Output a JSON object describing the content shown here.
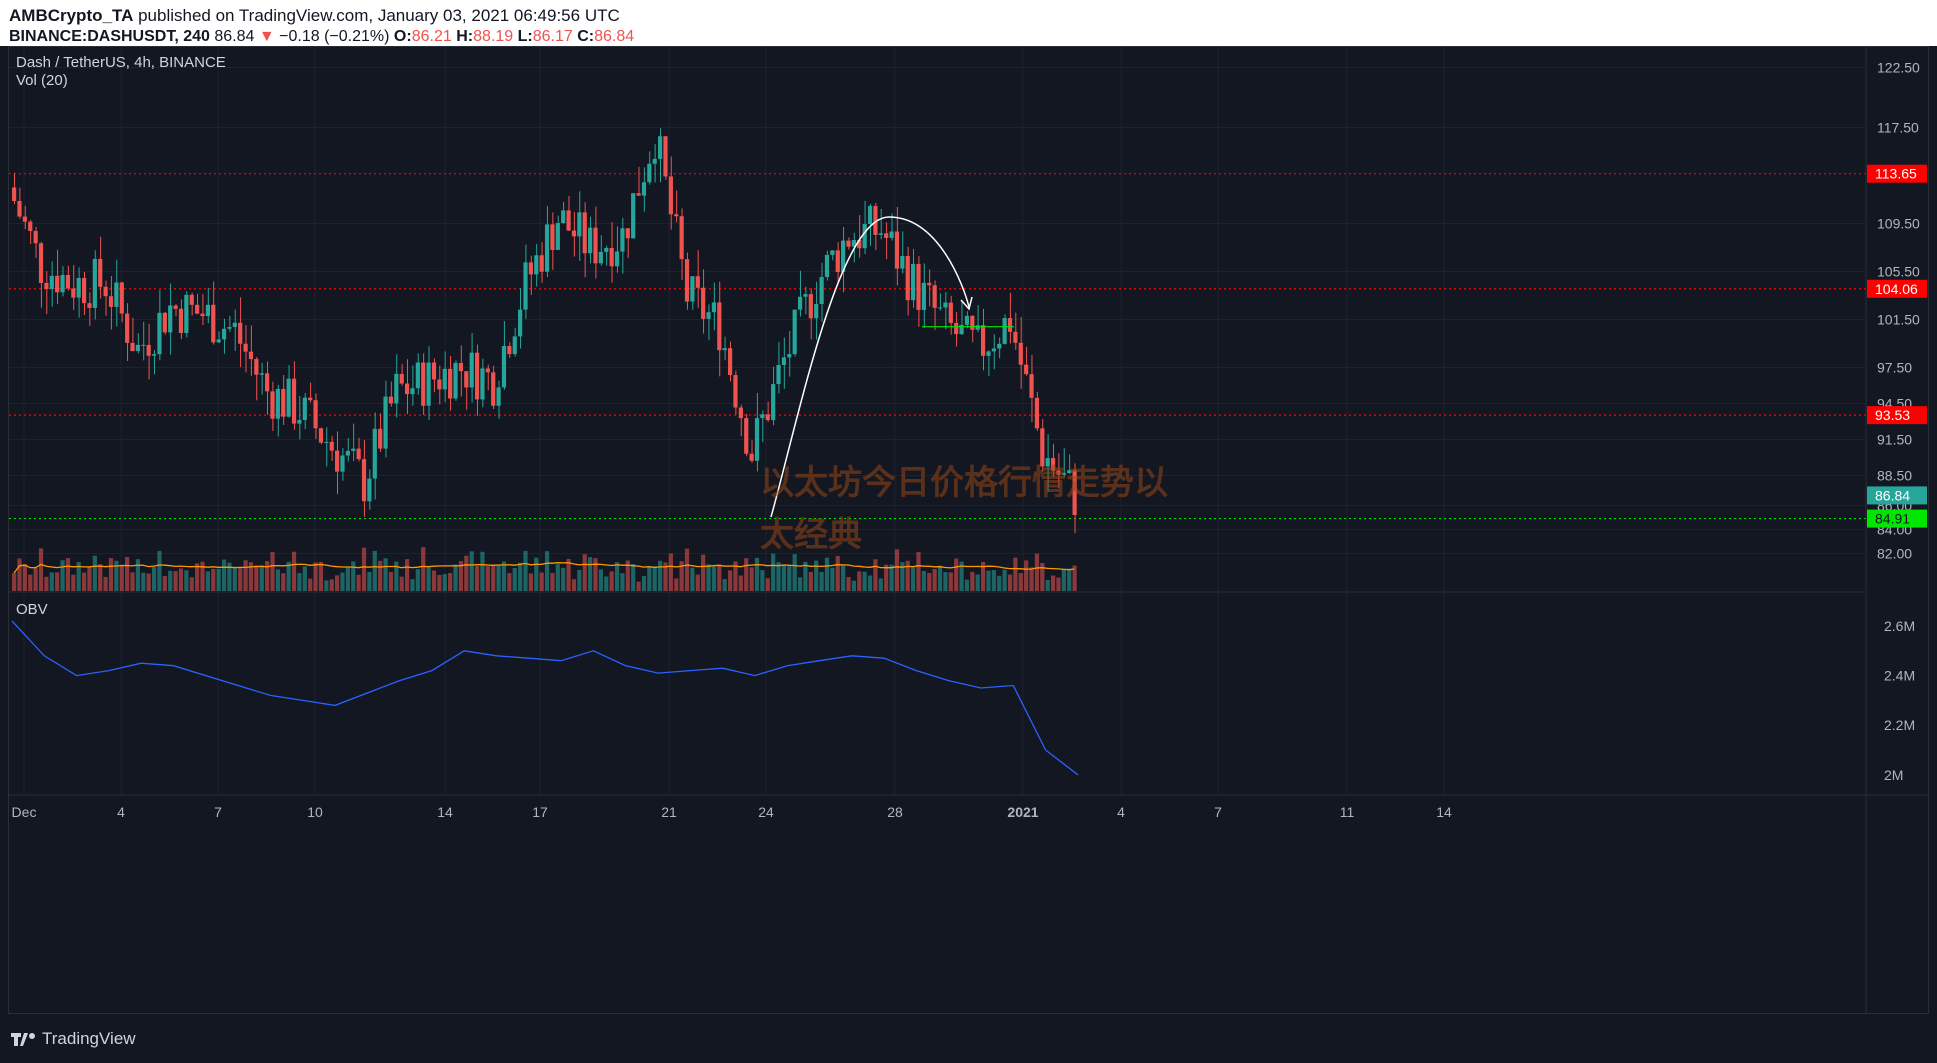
{
  "header": {
    "author": "AMBCrypto_TA",
    "published": "published on TradingView.com, January 03, 2021 06:49:56 UTC",
    "symbol": "BINANCE:DASHUSDT, 240",
    "last": "86.84",
    "change": "−0.18 (−0.21%)",
    "o_label": "O:",
    "o": "86.21",
    "h_label": "H:",
    "h": "88.19",
    "l_label": "L:",
    "l": "86.17",
    "c_label": "C:",
    "c": "86.84"
  },
  "pane": {
    "title": "Dash / TetherUS, 4h, BINANCE",
    "vol_label": "Vol (20)",
    "obv_label": "OBV"
  },
  "watermark": "以太坊今日价格行情走势以太经典",
  "footer": {
    "brand": "TradingView"
  },
  "colors": {
    "up": "#26a69a",
    "down": "#ef5350",
    "resistance": "#ff0000",
    "support": "#00e600",
    "obv": "#2962ff",
    "vol_ma": "#ff9800"
  },
  "chart_data": [
    {
      "type": "candlestick",
      "title": "Dash / TetherUS, 4h, BINANCE",
      "y_ticks": [
        122.5,
        117.5,
        109.5,
        105.5,
        101.5,
        97.5,
        94.5,
        91.5,
        88.5,
        86.0,
        84.0,
        82.0
      ],
      "ylim": [
        82.0,
        124.0
      ],
      "x_ticks": [
        "Dec",
        "4",
        "7",
        "10",
        "14",
        "17",
        "21",
        "24",
        "28",
        "2021",
        "4",
        "7",
        "11",
        "14"
      ],
      "horizontal_levels": [
        {
          "value": 113.65,
          "label": "113.65",
          "color": "#ff0000",
          "style": "dotted"
        },
        {
          "value": 104.06,
          "label": "104.06",
          "color": "#ff0000",
          "style": "dotted"
        },
        {
          "value": 93.53,
          "label": "93.53",
          "color": "#ff0000",
          "style": "dotted"
        },
        {
          "value": 84.91,
          "label": "84.91",
          "color": "#00e600",
          "style": "dotted"
        }
      ],
      "last_price": {
        "value": 86.84,
        "label": "86.84"
      },
      "close_path": [
        {
          "x": "Dec 1",
          "y": 112.5
        },
        {
          "x": "Dec 2",
          "y": 106.0
        },
        {
          "x": "Dec 3",
          "y": 104.5
        },
        {
          "x": "Dec 4",
          "y": 104.5
        },
        {
          "x": "Dec 5",
          "y": 99.0
        },
        {
          "x": "Dec 6",
          "y": 102.5
        },
        {
          "x": "Dec 7",
          "y": 102.0
        },
        {
          "x": "Dec 8",
          "y": 100.5
        },
        {
          "x": "Dec 9",
          "y": 95.5
        },
        {
          "x": "Dec 10",
          "y": 94.0
        },
        {
          "x": "Dec 11",
          "y": 91.0
        },
        {
          "x": "Dec 12",
          "y": 88.0
        },
        {
          "x": "Dec 13",
          "y": 95.5
        },
        {
          "x": "Dec 14",
          "y": 96.5
        },
        {
          "x": "Dec 15",
          "y": 97.5
        },
        {
          "x": "Dec 16",
          "y": 96.5
        },
        {
          "x": "Dec 17",
          "y": 104.5
        },
        {
          "x": "Dec 18",
          "y": 110.0
        },
        {
          "x": "Dec 19",
          "y": 107.5
        },
        {
          "x": "Dec 20",
          "y": 108.5
        },
        {
          "x": "Dec 21",
          "y": 117.0
        },
        {
          "x": "Dec 22",
          "y": 103.5
        },
        {
          "x": "Dec 23",
          "y": 101.0
        },
        {
          "x": "Dec 24",
          "y": 90.5
        },
        {
          "x": "Dec 25",
          "y": 98.0
        },
        {
          "x": "Dec 26",
          "y": 104.5
        },
        {
          "x": "Dec 27",
          "y": 108.5
        },
        {
          "x": "Dec 28",
          "y": 109.0
        },
        {
          "x": "Dec 29",
          "y": 104.5
        },
        {
          "x": "Dec 30",
          "y": 101.0
        },
        {
          "x": "Dec 31",
          "y": 99.0
        },
        {
          "x": "Jan 1",
          "y": 101.5
        },
        {
          "x": "Jan 2",
          "y": 90.5
        },
        {
          "x": "Jan 3",
          "y": 86.84
        }
      ]
    },
    {
      "type": "bar",
      "title": "Vol (20)",
      "note": "volume histogram with 20-period moving average"
    },
    {
      "type": "line",
      "title": "OBV",
      "y_ticks": [
        "2.6M",
        "2.4M",
        "2.2M",
        "2M"
      ],
      "ylim": [
        1.95,
        2.7
      ],
      "series": [
        {
          "name": "OBV",
          "values": [
            2.62,
            2.48,
            2.4,
            2.42,
            2.45,
            2.44,
            2.4,
            2.36,
            2.32,
            2.3,
            2.28,
            2.33,
            2.38,
            2.42,
            2.5,
            2.48,
            2.47,
            2.46,
            2.5,
            2.44,
            2.41,
            2.42,
            2.43,
            2.4,
            2.44,
            2.46,
            2.48,
            2.47,
            2.42,
            2.38,
            2.35,
            2.36,
            2.1,
            2.0
          ]
        }
      ]
    }
  ]
}
